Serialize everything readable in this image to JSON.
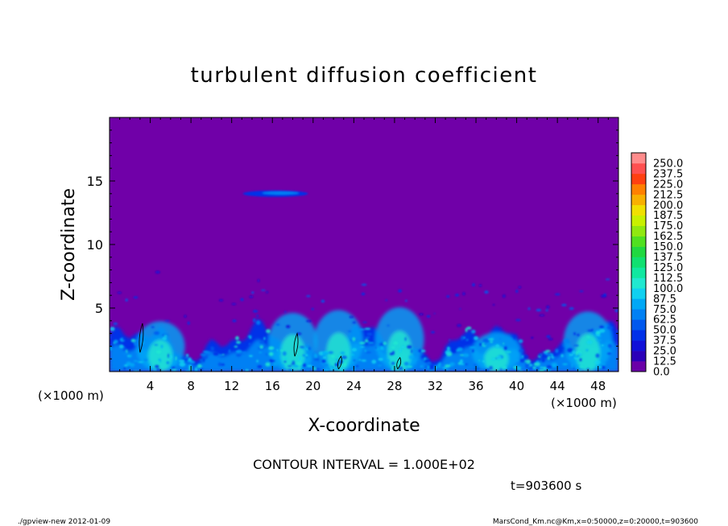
{
  "chart_data": {
    "type": "heatmap",
    "title": "turbulent diffusion coefficient",
    "xlabel": "X-coordinate",
    "ylabel": "Z-coordinate",
    "x_unit": "(×1000 m)",
    "z_unit": "(×1000 m)",
    "xlim": [
      0,
      50
    ],
    "zlim": [
      0,
      20
    ],
    "x_ticks": [
      4,
      8,
      12,
      16,
      20,
      24,
      28,
      32,
      36,
      40,
      44,
      48
    ],
    "z_ticks": [
      5,
      10,
      15
    ],
    "contour_interval": "CONTOUR INTERVAL = 1.000E+02",
    "time_label": "t=903600 s",
    "footer_left": "./gpview-new  2012-01-09",
    "footer_right": "MarsCond_Km.nc@Km,x=0:50000,z=0:20000,t=903600",
    "colorbar": {
      "levels": [
        "0.0",
        "12.5",
        "25.0",
        "37.5",
        "50.0",
        "62.5",
        "75.0",
        "87.5",
        "100.0",
        "112.5",
        "125.0",
        "137.5",
        "150.0",
        "162.5",
        "175.0",
        "187.5",
        "200.0",
        "212.5",
        "225.0",
        "237.5",
        "250.0"
      ],
      "colors": [
        "#6a00a8",
        "#2a00b8",
        "#1010d8",
        "#0030e8",
        "#0058ee",
        "#0080f4",
        "#00a8f6",
        "#10d0f0",
        "#20e8d0",
        "#10e8a0",
        "#10e070",
        "#20d840",
        "#50e020",
        "#90e810",
        "#c8f000",
        "#f0e000",
        "#f8b000",
        "#ff8000",
        "#ff4010",
        "#ff5050",
        "#ff8c8c"
      ]
    },
    "background_color": "#7000a8"
  }
}
